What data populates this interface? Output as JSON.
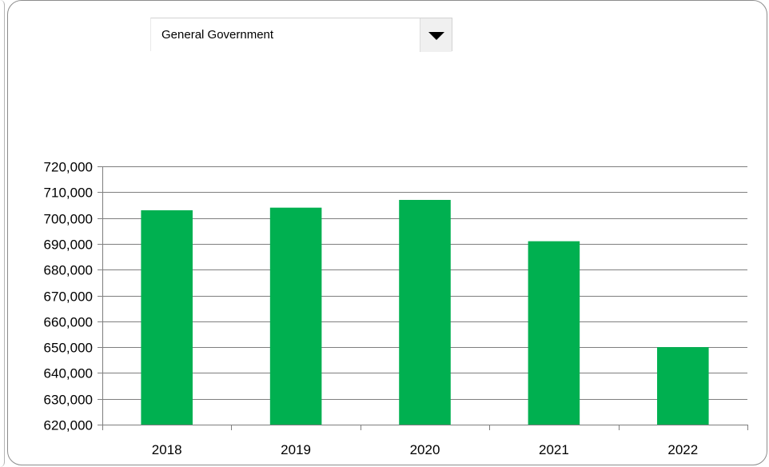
{
  "dropdown": {
    "selected": "General Government"
  },
  "colors": {
    "bar": "#00b050",
    "grid": "#7f7f7f"
  },
  "chart_data": {
    "type": "bar",
    "title": "",
    "xlabel": "",
    "ylabel": "",
    "categories": [
      "2018",
      "2019",
      "2020",
      "2021",
      "2022"
    ],
    "series": [
      {
        "values": [
          703000,
          704000,
          707000,
          691000,
          650000
        ]
      }
    ],
    "ylim": [
      620000,
      720000
    ],
    "ytick_step": 10000,
    "ytick_labels": [
      "620,000",
      "630,000",
      "640,000",
      "650,000",
      "660,000",
      "670,000",
      "680,000",
      "690,000",
      "700,000",
      "710,000",
      "720,000"
    ],
    "grid": true,
    "legend": "none"
  }
}
